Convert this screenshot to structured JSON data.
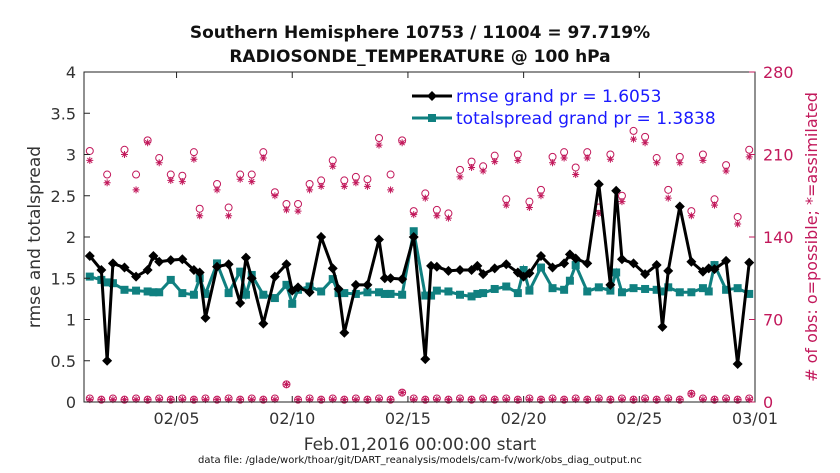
{
  "chart_data": {
    "type": "line",
    "title_line1": "Southern Hemisphere 10753 / 11004 = 97.719%",
    "title_line2": "RADIOSONDE_TEMPERATURE @ 100 hPa",
    "xlabel": "Feb.01,2016 00:00:00 start",
    "ylabel_left": "rmse and totalspread",
    "ylabel_right": "# of obs: o=possible; *=assimilated",
    "footer": "data file: /glade/work/thoar/git/DART_reanalysis/models/cam-fv/work/obs_diag_output.nc",
    "xlim": [
      0,
      29
    ],
    "ylim_left": [
      0,
      4
    ],
    "ylim_right": [
      0,
      280
    ],
    "x_ticks": [
      4,
      9,
      14,
      19,
      24,
      29
    ],
    "x_tick_labels": [
      "02/05",
      "02/10",
      "02/15",
      "02/20",
      "02/25",
      "03/01"
    ],
    "y_ticks_left": [
      0,
      0.5,
      1,
      1.5,
      2,
      2.5,
      3,
      3.5,
      4
    ],
    "y_tick_labels_left": [
      "0",
      "0.5",
      "1",
      "1.5",
      "2",
      "2.5",
      "3",
      "3.5",
      "4"
    ],
    "y_ticks_right": [
      0,
      70,
      140,
      210,
      280
    ],
    "y_tick_labels_right": [
      "0",
      "70",
      "140",
      "210",
      "280"
    ],
    "colors": {
      "rmse": "#000000",
      "spread": "#108080",
      "obs": "#c2185b",
      "legend_text": "#1a1aff"
    },
    "grid": false,
    "legend_position": "top-right",
    "series": [
      {
        "name": "rmse grand pr = 1.6053",
        "x": [
          0.25,
          0.75,
          1.0,
          1.25,
          1.75,
          2.25,
          2.75,
          3.0,
          3.25,
          3.75,
          4.25,
          4.75,
          5.0,
          5.25,
          5.75,
          6.25,
          6.75,
          7.0,
          7.25,
          7.75,
          8.25,
          8.75,
          9.0,
          9.25,
          9.75,
          10.25,
          10.75,
          11.0,
          11.25,
          11.75,
          12.25,
          12.75,
          13.0,
          13.25,
          13.75,
          14.25,
          14.75,
          15.0,
          15.25,
          15.75,
          16.25,
          16.75,
          17.0,
          17.25,
          17.75,
          18.25,
          18.75,
          19.0,
          19.25,
          19.75,
          20.25,
          20.75,
          21.0,
          21.25,
          21.75,
          22.25,
          22.75,
          23.0,
          23.25,
          23.75,
          24.25,
          24.75,
          25.0,
          25.25,
          25.75,
          26.25,
          26.75,
          27.0,
          27.25,
          27.75,
          28.25,
          28.75
        ],
        "y": [
          1.77,
          1.6,
          0.5,
          1.68,
          1.63,
          1.52,
          1.6,
          1.77,
          1.7,
          1.72,
          1.73,
          1.6,
          1.57,
          1.02,
          1.64,
          1.67,
          1.2,
          1.75,
          1.5,
          0.95,
          1.52,
          1.67,
          1.35,
          1.39,
          1.33,
          2.0,
          1.62,
          1.37,
          0.84,
          1.42,
          1.42,
          1.97,
          1.5,
          1.5,
          1.49,
          2.0,
          0.52,
          1.65,
          1.64,
          1.59,
          1.6,
          1.6,
          1.65,
          1.55,
          1.62,
          1.67,
          1.57,
          1.52,
          1.56,
          1.77,
          1.63,
          1.68,
          1.79,
          1.74,
          1.68,
          2.64,
          1.42,
          2.56,
          1.73,
          1.68,
          1.55,
          1.66,
          0.91,
          1.59,
          2.37,
          1.7,
          1.58,
          1.62,
          1.61,
          1.71,
          0.46,
          1.69
        ]
      },
      {
        "name": "totalspread grand pr = 1.3838",
        "x": [
          0.25,
          0.75,
          1.0,
          1.25,
          1.75,
          2.25,
          2.75,
          3.0,
          3.25,
          3.75,
          4.25,
          4.75,
          5.0,
          5.25,
          5.75,
          6.25,
          6.75,
          7.0,
          7.25,
          7.75,
          8.25,
          8.75,
          9.0,
          9.25,
          9.75,
          10.25,
          10.75,
          11.0,
          11.25,
          11.75,
          12.25,
          12.75,
          13.0,
          13.25,
          13.75,
          14.25,
          14.75,
          15.0,
          15.25,
          15.75,
          16.25,
          16.75,
          17.0,
          17.25,
          17.75,
          18.25,
          18.75,
          19.0,
          19.25,
          19.75,
          20.25,
          20.75,
          21.0,
          21.25,
          21.75,
          22.25,
          22.75,
          23.0,
          23.25,
          23.75,
          24.25,
          24.75,
          25.0,
          25.25,
          25.75,
          26.25,
          26.75,
          27.0,
          27.25,
          27.75,
          28.25,
          28.75
        ],
        "y": [
          1.52,
          1.48,
          1.45,
          1.44,
          1.36,
          1.35,
          1.34,
          1.33,
          1.33,
          1.48,
          1.32,
          1.3,
          1.5,
          1.31,
          1.68,
          1.32,
          1.58,
          1.3,
          1.54,
          1.3,
          1.26,
          1.42,
          1.19,
          1.36,
          1.4,
          1.34,
          1.49,
          1.32,
          1.32,
          1.31,
          1.33,
          1.33,
          1.31,
          1.31,
          1.3,
          2.07,
          1.29,
          1.29,
          1.35,
          1.34,
          1.3,
          1.28,
          1.31,
          1.32,
          1.37,
          1.4,
          1.32,
          1.6,
          1.35,
          1.63,
          1.38,
          1.36,
          1.47,
          1.66,
          1.34,
          1.39,
          1.35,
          1.57,
          1.33,
          1.38,
          1.37,
          1.36,
          1.34,
          1.39,
          1.33,
          1.33,
          1.38,
          1.34,
          1.66,
          1.36,
          1.38,
          1.31
        ]
      }
    ],
    "obs_possible": {
      "x": [
        0.25,
        1.0,
        1.75,
        2.25,
        2.75,
        3.25,
        3.75,
        4.25,
        4.75,
        5.0,
        5.75,
        6.25,
        6.75,
        7.25,
        7.75,
        8.25,
        8.75,
        9.25,
        9.75,
        10.25,
        10.75,
        11.25,
        11.75,
        12.25,
        12.75,
        13.25,
        13.75,
        14.25,
        14.75,
        15.25,
        15.75,
        16.25,
        16.75,
        17.25,
        17.75,
        18.25,
        18.75,
        19.25,
        19.75,
        20.25,
        20.75,
        21.25,
        21.75,
        22.25,
        22.75,
        23.25,
        23.75,
        24.25,
        24.75,
        25.25,
        25.75,
        26.25,
        26.75,
        27.25,
        27.75,
        28.25,
        28.75
      ],
      "y": [
        213,
        193,
        214,
        193,
        222,
        207,
        193,
        192,
        212,
        164,
        185,
        165,
        193,
        193,
        212,
        178,
        168,
        168,
        185,
        188,
        205,
        188,
        191,
        189,
        224,
        193,
        222,
        162,
        177,
        163,
        160,
        197,
        204,
        200,
        209,
        172,
        210,
        170,
        180,
        208,
        212,
        199,
        212,
        165,
        210,
        175,
        230,
        225,
        207,
        180,
        208,
        162,
        210,
        172,
        201,
        157,
        214
      ]
    },
    "obs_assimilated": {
      "x": [
        0.25,
        1.0,
        1.75,
        2.25,
        2.75,
        3.25,
        3.75,
        4.25,
        4.75,
        5.0,
        5.75,
        6.25,
        6.75,
        7.25,
        7.75,
        8.25,
        8.75,
        9.25,
        9.75,
        10.25,
        10.75,
        11.25,
        11.75,
        12.25,
        12.75,
        13.25,
        13.75,
        14.25,
        14.75,
        15.25,
        15.75,
        16.25,
        16.75,
        17.25,
        17.75,
        18.25,
        18.75,
        19.25,
        19.75,
        20.25,
        20.75,
        21.25,
        21.75,
        22.25,
        22.75,
        23.25,
        23.75,
        24.25,
        24.75,
        25.25,
        25.75,
        26.25,
        26.75,
        27.25,
        27.75,
        28.25,
        28.75
      ],
      "y": [
        205,
        186,
        210,
        180,
        220,
        203,
        188,
        187,
        206,
        158,
        180,
        158,
        189,
        187,
        207,
        175,
        163,
        162,
        180,
        183,
        200,
        183,
        186,
        183,
        218,
        180,
        220,
        159,
        173,
        158,
        156,
        191,
        199,
        196,
        204,
        167,
        205,
        165,
        175,
        203,
        207,
        193,
        207,
        160,
        206,
        170,
        223,
        220,
        203,
        173,
        203,
        158,
        205,
        167,
        196,
        151,
        208
      ]
    },
    "obs_low_possible": {
      "x": [
        0.25,
        0.75,
        1.25,
        1.75,
        2.25,
        2.75,
        3.25,
        3.75,
        4.25,
        4.75,
        5.25,
        5.75,
        6.25,
        6.75,
        7.25,
        7.75,
        8.25,
        8.75,
        9.25,
        9.75,
        10.25,
        10.75,
        11.25,
        11.75,
        12.25,
        12.75,
        13.25,
        13.75,
        14.25,
        14.75,
        15.25,
        15.75,
        16.25,
        16.75,
        17.25,
        17.75,
        18.25,
        18.75,
        19.25,
        19.75,
        20.25,
        20.75,
        21.25,
        21.75,
        22.25,
        22.75,
        23.25,
        23.75,
        24.25,
        24.75,
        25.25,
        25.75,
        26.25,
        26.75,
        27.25,
        27.75,
        28.25,
        28.75
      ],
      "y": [
        3,
        2,
        3,
        2,
        3,
        2,
        3,
        2,
        3,
        2,
        3,
        2,
        3,
        2,
        3,
        2,
        3,
        15,
        2,
        3,
        2,
        3,
        2,
        3,
        2,
        3,
        2,
        8,
        3,
        2,
        3,
        2,
        3,
        2,
        3,
        2,
        3,
        2,
        3,
        2,
        3,
        2,
        3,
        2,
        3,
        2,
        3,
        2,
        3,
        2,
        3,
        2,
        7,
        3,
        2,
        3,
        2,
        3
      ]
    },
    "obs_low_assimilated": {
      "x": [
        0.25,
        0.75,
        1.25,
        1.75,
        2.25,
        2.75,
        3.25,
        3.75,
        4.25,
        4.75,
        5.25,
        5.75,
        6.25,
        6.75,
        7.25,
        7.75,
        8.25,
        8.75,
        9.25,
        9.75,
        10.25,
        10.75,
        11.25,
        11.75,
        12.25,
        12.75,
        13.25,
        13.75,
        14.25,
        14.75,
        15.25,
        15.75,
        16.25,
        16.75,
        17.25,
        17.75,
        18.25,
        18.75,
        19.25,
        19.75,
        20.25,
        20.75,
        21.25,
        21.75,
        22.25,
        22.75,
        23.25,
        23.75,
        24.25,
        24.75,
        25.25,
        25.75,
        26.25,
        26.75,
        27.25,
        27.75,
        28.25,
        28.75
      ],
      "y": [
        2,
        2,
        2,
        2,
        2,
        2,
        2,
        2,
        2,
        2,
        2,
        2,
        2,
        2,
        2,
        2,
        2,
        15,
        2,
        2,
        2,
        2,
        2,
        2,
        2,
        2,
        2,
        8,
        2,
        2,
        2,
        2,
        2,
        2,
        2,
        2,
        2,
        2,
        2,
        2,
        2,
        2,
        2,
        2,
        2,
        2,
        2,
        2,
        2,
        2,
        2,
        2,
        7,
        2,
        2,
        2,
        2,
        2
      ]
    }
  }
}
